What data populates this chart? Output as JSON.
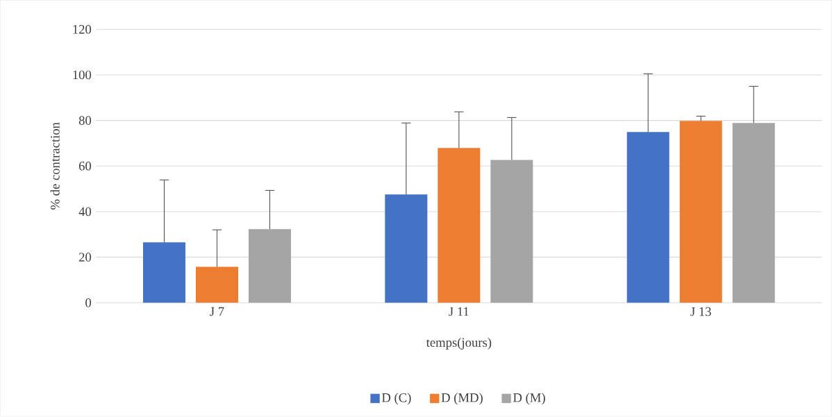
{
  "chart_data": {
    "type": "bar",
    "categories": [
      "J 7",
      "J 11",
      "J 13"
    ],
    "xlabel": "temps(jours)",
    "ylabel": "% de contraction",
    "series": [
      {
        "name": "D (C)",
        "color": "#4472c4",
        "values": [
          26.5,
          47.5,
          74.9
        ],
        "errors": [
          [
            26.5,
            53.9
          ],
          [
            47.5,
            78.9
          ],
          [
            74.9,
            100.5
          ]
        ]
      },
      {
        "name": "D (MD)",
        "color": "#ed7d31",
        "values": [
          15.8,
          67.9,
          79.8
        ],
        "errors": [
          [
            15.8,
            32
          ],
          [
            67.9,
            83.8
          ],
          [
            79.8,
            81.9
          ]
        ]
      },
      {
        "name": "D (M)",
        "color": "#a5a5a5",
        "values": [
          32.3,
          62.7,
          78.9
        ],
        "errors": [
          [
            32.3,
            49.3
          ],
          [
            62.7,
            81.3
          ],
          [
            78.9,
            95
          ]
        ]
      }
    ],
    "ylim": [
      0,
      120
    ],
    "yticks": [
      0,
      20,
      40,
      60,
      80,
      100,
      120
    ],
    "grid": "y",
    "legend": "bottom"
  }
}
